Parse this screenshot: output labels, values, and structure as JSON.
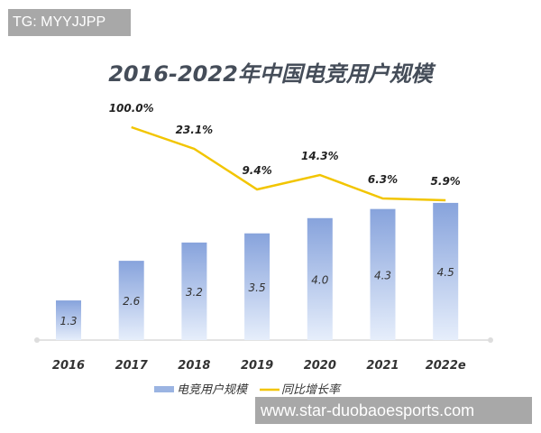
{
  "watermarks": {
    "top": "TG: MYYJJPP",
    "bottom": "www.star-duobaoesports.com"
  },
  "chart_data": {
    "type": "bar+line",
    "title": "2016-2022年中国电竞用户规模",
    "categories": [
      "2016",
      "2017",
      "2018",
      "2019",
      "2020",
      "2021",
      "2022e"
    ],
    "series": [
      {
        "name": "电竞用户规模",
        "type": "bar",
        "values": [
          1.3,
          2.6,
          3.2,
          3.5,
          4.0,
          4.3,
          4.5
        ],
        "labels": [
          "1.3",
          "2.6",
          "3.2",
          "3.5",
          "4.0",
          "4.3",
          "4.5"
        ],
        "color": "#8eaadf"
      },
      {
        "name": "同比增长率",
        "type": "line",
        "values": [
          null,
          100.0,
          23.1,
          9.4,
          14.3,
          6.3,
          5.9
        ],
        "labels": [
          "",
          "100.0%",
          "23.1%",
          "9.4%",
          "14.3%",
          "6.3%",
          "5.9%"
        ],
        "color": "#f2c500"
      }
    ],
    "grid": false,
    "legend": "bottom-center"
  }
}
